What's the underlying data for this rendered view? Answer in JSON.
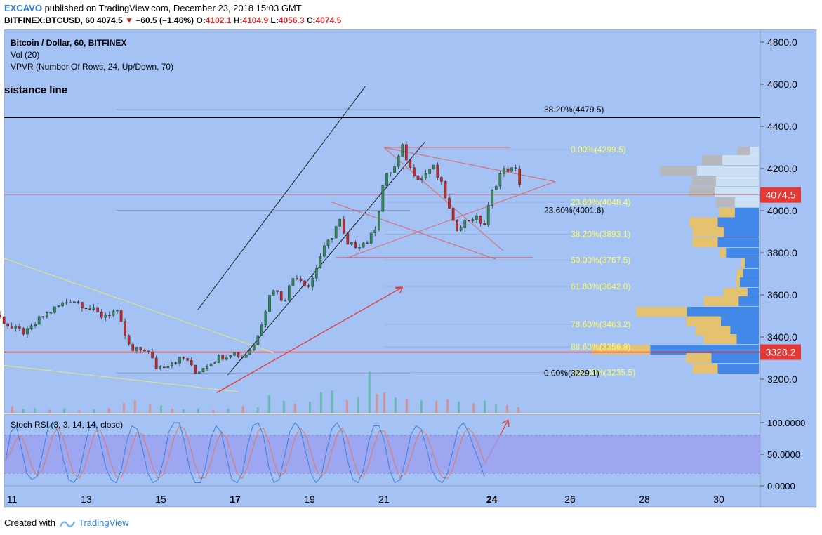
{
  "header": {
    "publisher": "EXCAVO",
    "published_text": "published on TradingView.com, December 23, 2018 15:03 GMT",
    "symbol": "BITFINEX:BTCUSD, 60",
    "last": "4074.5",
    "change": "−60.5 (−1.46%)",
    "o_label": "O:",
    "o": "4102.1",
    "h_label": "H:",
    "h": "4104.9",
    "l_label": "L:",
    "l": "4056.3",
    "c_label": "C:",
    "c": "4074.5"
  },
  "legend": {
    "line1": "Bitcoin / Dollar, 60, BITFINEX",
    "line2": "Vol (20)",
    "line3": "VPVR (Number Of Rows, 24, Up/Down, 70)",
    "resistance": "sistance line"
  },
  "colors": {
    "bg": "#a4c2f4",
    "pane_bg": "#9b9fef",
    "up": "#2e8b57",
    "down": "#c62828",
    "fib": "#ffff66",
    "resist": "#000000",
    "support": "#c62828",
    "badge": "#e53935"
  },
  "chart_data": {
    "type": "candlestick",
    "y_axis": {
      "range": [
        3100,
        4870
      ],
      "ticks": [
        "4800.0",
        "4600.0",
        "4400.0",
        "4200.0",
        "4000.0",
        "3800.0",
        "3600.0",
        "3400.0",
        "3200.0"
      ]
    },
    "x_axis": {
      "ticks": [
        "11",
        "13",
        "15",
        "17",
        "19",
        "21",
        "24",
        "26",
        "28",
        "30"
      ]
    },
    "price_path": [
      [
        10.0,
        3530
      ],
      [
        10.6,
        3505
      ],
      [
        11.0,
        3440
      ],
      [
        11.4,
        3420
      ],
      [
        11.8,
        3495
      ],
      [
        12.2,
        3540
      ],
      [
        12.6,
        3580
      ],
      [
        13.0,
        3545
      ],
      [
        13.4,
        3500
      ],
      [
        13.8,
        3525
      ],
      [
        14.2,
        3330
      ],
      [
        14.6,
        3345
      ],
      [
        14.9,
        3250
      ],
      [
        15.3,
        3285
      ],
      [
        15.7,
        3300
      ],
      [
        15.9,
        3225
      ],
      [
        16.3,
        3280
      ],
      [
        16.6,
        3305
      ],
      [
        16.9,
        3330
      ],
      [
        17.2,
        3305
      ],
      [
        17.5,
        3360
      ],
      [
        17.8,
        3520
      ],
      [
        18.0,
        3640
      ],
      [
        18.3,
        3570
      ],
      [
        18.6,
        3700
      ],
      [
        19.0,
        3640
      ],
      [
        19.3,
        3790
      ],
      [
        19.6,
        3880
      ],
      [
        19.8,
        3960
      ],
      [
        20.0,
        3830
      ],
      [
        20.3,
        3840
      ],
      [
        20.6,
        3855
      ],
      [
        20.8,
        3940
      ],
      [
        21.0,
        4150
      ],
      [
        21.3,
        4210
      ],
      [
        21.5,
        4300
      ],
      [
        21.7,
        4200
      ],
      [
        22.0,
        4150
      ],
      [
        22.3,
        4215
      ],
      [
        22.6,
        4100
      ],
      [
        22.9,
        3910
      ],
      [
        23.1,
        3940
      ],
      [
        23.4,
        3970
      ],
      [
        23.7,
        3935
      ],
      [
        23.9,
        4085
      ],
      [
        24.1,
        4170
      ],
      [
        24.3,
        4200
      ],
      [
        24.6,
        4185
      ],
      [
        24.7,
        4074.5
      ]
    ],
    "volume_bars": [
      [
        10.0,
        18,
        "d"
      ],
      [
        10.3,
        14,
        "u"
      ],
      [
        10.6,
        11,
        "d"
      ],
      [
        11.0,
        22,
        "d"
      ],
      [
        11.3,
        12,
        "u"
      ],
      [
        11.6,
        16,
        "u"
      ],
      [
        12.0,
        10,
        "d"
      ],
      [
        12.4,
        14,
        "u"
      ],
      [
        12.8,
        9,
        "d"
      ],
      [
        13.2,
        12,
        "u"
      ],
      [
        13.6,
        15,
        "d"
      ],
      [
        14.0,
        30,
        "d"
      ],
      [
        14.3,
        40,
        "d"
      ],
      [
        14.7,
        26,
        "d"
      ],
      [
        15.0,
        24,
        "u"
      ],
      [
        15.3,
        13,
        "d"
      ],
      [
        15.6,
        11,
        "u"
      ],
      [
        16.0,
        15,
        "u"
      ],
      [
        16.4,
        10,
        "d"
      ],
      [
        16.8,
        13,
        "u"
      ],
      [
        17.2,
        22,
        "d"
      ],
      [
        17.6,
        18,
        "u"
      ],
      [
        17.9,
        55,
        "u"
      ],
      [
        18.3,
        38,
        "u"
      ],
      [
        18.6,
        28,
        "d"
      ],
      [
        19.0,
        35,
        "u"
      ],
      [
        19.3,
        65,
        "u"
      ],
      [
        19.6,
        70,
        "u"
      ],
      [
        20.0,
        40,
        "d"
      ],
      [
        20.3,
        50,
        "u"
      ],
      [
        20.6,
        130,
        "u"
      ],
      [
        20.8,
        60,
        "d"
      ],
      [
        21.0,
        65,
        "d"
      ],
      [
        21.3,
        48,
        "u"
      ],
      [
        21.6,
        44,
        "d"
      ],
      [
        22.0,
        40,
        "u"
      ],
      [
        22.4,
        38,
        "d"
      ],
      [
        22.7,
        42,
        "d"
      ],
      [
        23.0,
        35,
        "u"
      ],
      [
        23.4,
        30,
        "d"
      ],
      [
        23.7,
        38,
        "u"
      ],
      [
        24.0,
        26,
        "u"
      ],
      [
        24.3,
        24,
        "d"
      ],
      [
        24.6,
        18,
        "d"
      ]
    ],
    "vpvr": [
      [
        4280,
        20,
        14
      ],
      [
        4240,
        32,
        58
      ],
      [
        4190,
        58,
        98
      ],
      [
        4140,
        38,
        68
      ],
      [
        4090,
        40,
        70
      ],
      [
        4040,
        30,
        38
      ],
      [
        3990,
        25,
        38
      ],
      [
        3945,
        45,
        65
      ],
      [
        3900,
        50,
        55
      ],
      [
        3850,
        40,
        65
      ],
      [
        3800,
        10,
        52
      ],
      [
        3750,
        6,
        22
      ],
      [
        3700,
        10,
        25
      ],
      [
        3660,
        6,
        30
      ],
      [
        3610,
        38,
        18
      ],
      [
        3570,
        55,
        32
      ],
      [
        3520,
        80,
        114
      ],
      [
        3475,
        55,
        60
      ],
      [
        3430,
        55,
        45
      ],
      [
        3390,
        52,
        35
      ],
      [
        3340,
        92,
        172
      ],
      [
        3300,
        40,
        75
      ],
      [
        3250,
        40,
        65
      ]
    ],
    "fib_right": [
      {
        "label": "0.00%(4299.5)",
        "price": 4290
      },
      {
        "label": "23.60%(4048.4)",
        "price": 4040
      },
      {
        "label": "38.20%(3893.1)",
        "price": 3888
      },
      {
        "label": "50.00%(3767.5)",
        "price": 3765
      },
      {
        "label": "61.80%(3642.0)",
        "price": 3640
      },
      {
        "label": "78.60%(3463.2)",
        "price": 3460
      },
      {
        "label": "88.60%(3356.8)",
        "price": 3353
      },
      {
        "label": "100.00%(3235.5)",
        "price": 3231
      }
    ],
    "fib_left": [
      {
        "label": "38.20%(4479.5)",
        "price": 4479.5
      },
      {
        "label": "23.60%(4001.6)",
        "price": 4001.6
      },
      {
        "label": "0.00%(3229.1)",
        "price": 3229.1
      }
    ],
    "resistance_price": 4442,
    "support_price": 3328.2,
    "last_price": "4074.5",
    "support_label": "3328.2",
    "stoch": {
      "title": "Stoch RSI (3, 3, 14, 14, close)",
      "ticks": [
        "100.0000",
        "50.0000",
        "0.0000"
      ],
      "range": [
        -3,
        103
      ],
      "band": [
        20,
        80
      ],
      "k": [
        40,
        85,
        95,
        60,
        20,
        10,
        15,
        50,
        90,
        100,
        85,
        40,
        10,
        5,
        20,
        60,
        95,
        100,
        70,
        30,
        10,
        5,
        25,
        70,
        95,
        90,
        60,
        20,
        5,
        10,
        40,
        85,
        100,
        100,
        70,
        25,
        5,
        5,
        30,
        75,
        95,
        85,
        45,
        10,
        5,
        20,
        65,
        95,
        100,
        80,
        30,
        5,
        10,
        45,
        85,
        100,
        90,
        55,
        20,
        5,
        15,
        55,
        90,
        100,
        85,
        40,
        10,
        5,
        25,
        70,
        95,
        95,
        70,
        25,
        5,
        10,
        40,
        80,
        95,
        90,
        60,
        25,
        10,
        5,
        20,
        55,
        90,
        100,
        85,
        60,
        40,
        15
      ]
    }
  },
  "footer": {
    "created": "Created with",
    "brand": "TradingView"
  }
}
